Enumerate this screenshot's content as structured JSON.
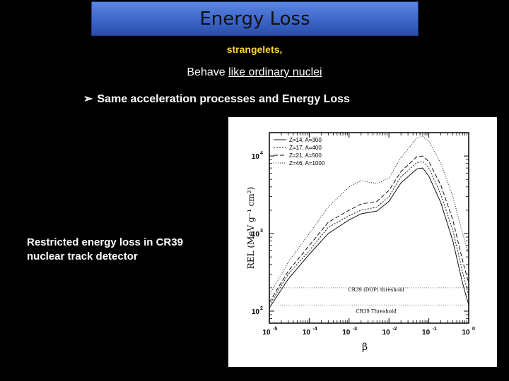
{
  "slide": {
    "title": "Energy Loss",
    "subtitle": "strangelets,",
    "behave_prefix": "Behave ",
    "behave_underlined": "like ordinary nuclei",
    "bullet": "Same acceleration processes and Energy Loss",
    "caption_line1": "Restricted energy loss in CR39",
    "caption_line2": "nuclear track detector"
  },
  "chart_data": {
    "type": "line",
    "xscale": "log",
    "yscale": "log",
    "xlim": [
      1e-05,
      1
    ],
    "ylim": [
      70,
      20000
    ],
    "xticks": [
      {
        "v": 1e-05,
        "base": "10",
        "exp": "-5"
      },
      {
        "v": 0.0001,
        "base": "10",
        "exp": "-4"
      },
      {
        "v": 0.001,
        "base": "10",
        "exp": "-3"
      },
      {
        "v": 0.01,
        "base": "10",
        "exp": "-2"
      },
      {
        "v": 0.1,
        "base": "10",
        "exp": "-1"
      },
      {
        "v": 1,
        "base": "10",
        "exp": "0"
      }
    ],
    "yticks": [
      {
        "v": 100,
        "base": "10",
        "exp": "2"
      },
      {
        "v": 1000,
        "base": "10",
        "exp": "3"
      },
      {
        "v": 10000,
        "base": "10",
        "exp": "4"
      }
    ],
    "xlabel": "β",
    "ylabel": "REL (MeV g⁻¹ cm²)",
    "series": [
      {
        "name": "Z=14, A=300",
        "dash": "",
        "points": [
          [
            1e-05,
            110
          ],
          [
            3e-05,
            260
          ],
          [
            0.0001,
            540
          ],
          [
            0.0003,
            1000
          ],
          [
            0.001,
            1500
          ],
          [
            0.002,
            1800
          ],
          [
            0.005,
            1950
          ],
          [
            0.01,
            2600
          ],
          [
            0.02,
            4500
          ],
          [
            0.05,
            6800
          ],
          [
            0.07,
            7000
          ],
          [
            0.1,
            5500
          ],
          [
            0.2,
            2500
          ],
          [
            0.4,
            800
          ],
          [
            0.7,
            230
          ],
          [
            1,
            120
          ]
        ]
      },
      {
        "name": "Z=17, A=400",
        "dash": "2,2",
        "points": [
          [
            1e-05,
            120
          ],
          [
            3e-05,
            300
          ],
          [
            0.0001,
            600
          ],
          [
            0.0003,
            1200
          ],
          [
            0.001,
            1700
          ],
          [
            0.002,
            2000
          ],
          [
            0.005,
            2200
          ],
          [
            0.01,
            3000
          ],
          [
            0.02,
            5400
          ],
          [
            0.05,
            8200
          ],
          [
            0.07,
            8500
          ],
          [
            0.1,
            7000
          ],
          [
            0.2,
            3200
          ],
          [
            0.4,
            1100
          ],
          [
            0.7,
            320
          ],
          [
            1,
            160
          ]
        ]
      },
      {
        "name": "Z=21, A=500",
        "dash": "6,3",
        "points": [
          [
            1e-05,
            130
          ],
          [
            3e-05,
            330
          ],
          [
            0.0001,
            700
          ],
          [
            0.0003,
            1400
          ],
          [
            0.001,
            2000
          ],
          [
            0.002,
            2400
          ],
          [
            0.005,
            2600
          ],
          [
            0.01,
            3600
          ],
          [
            0.02,
            6300
          ],
          [
            0.05,
            9800
          ],
          [
            0.07,
            10000
          ],
          [
            0.1,
            8500
          ],
          [
            0.2,
            4200
          ],
          [
            0.4,
            1500
          ],
          [
            0.7,
            450
          ],
          [
            1,
            230
          ]
        ]
      },
      {
        "name": "Z=46, A=1000",
        "dash": "1,2",
        "points": [
          [
            1e-05,
            160
          ],
          [
            3e-05,
            430
          ],
          [
            0.0001,
            1000
          ],
          [
            0.0003,
            2200
          ],
          [
            0.001,
            4000
          ],
          [
            0.002,
            4800
          ],
          [
            0.005,
            4400
          ],
          [
            0.01,
            5200
          ],
          [
            0.02,
            9500
          ],
          [
            0.05,
            17000
          ],
          [
            0.07,
            18000
          ],
          [
            0.1,
            15500
          ],
          [
            0.2,
            8000
          ],
          [
            0.4,
            3000
          ],
          [
            0.7,
            1000
          ],
          [
            1,
            550
          ]
        ]
      }
    ],
    "annotations": [
      {
        "text": "CR39 (DOP) threshold",
        "y": 200
      },
      {
        "text": "CR39 Threshold",
        "y": 120
      }
    ]
  }
}
